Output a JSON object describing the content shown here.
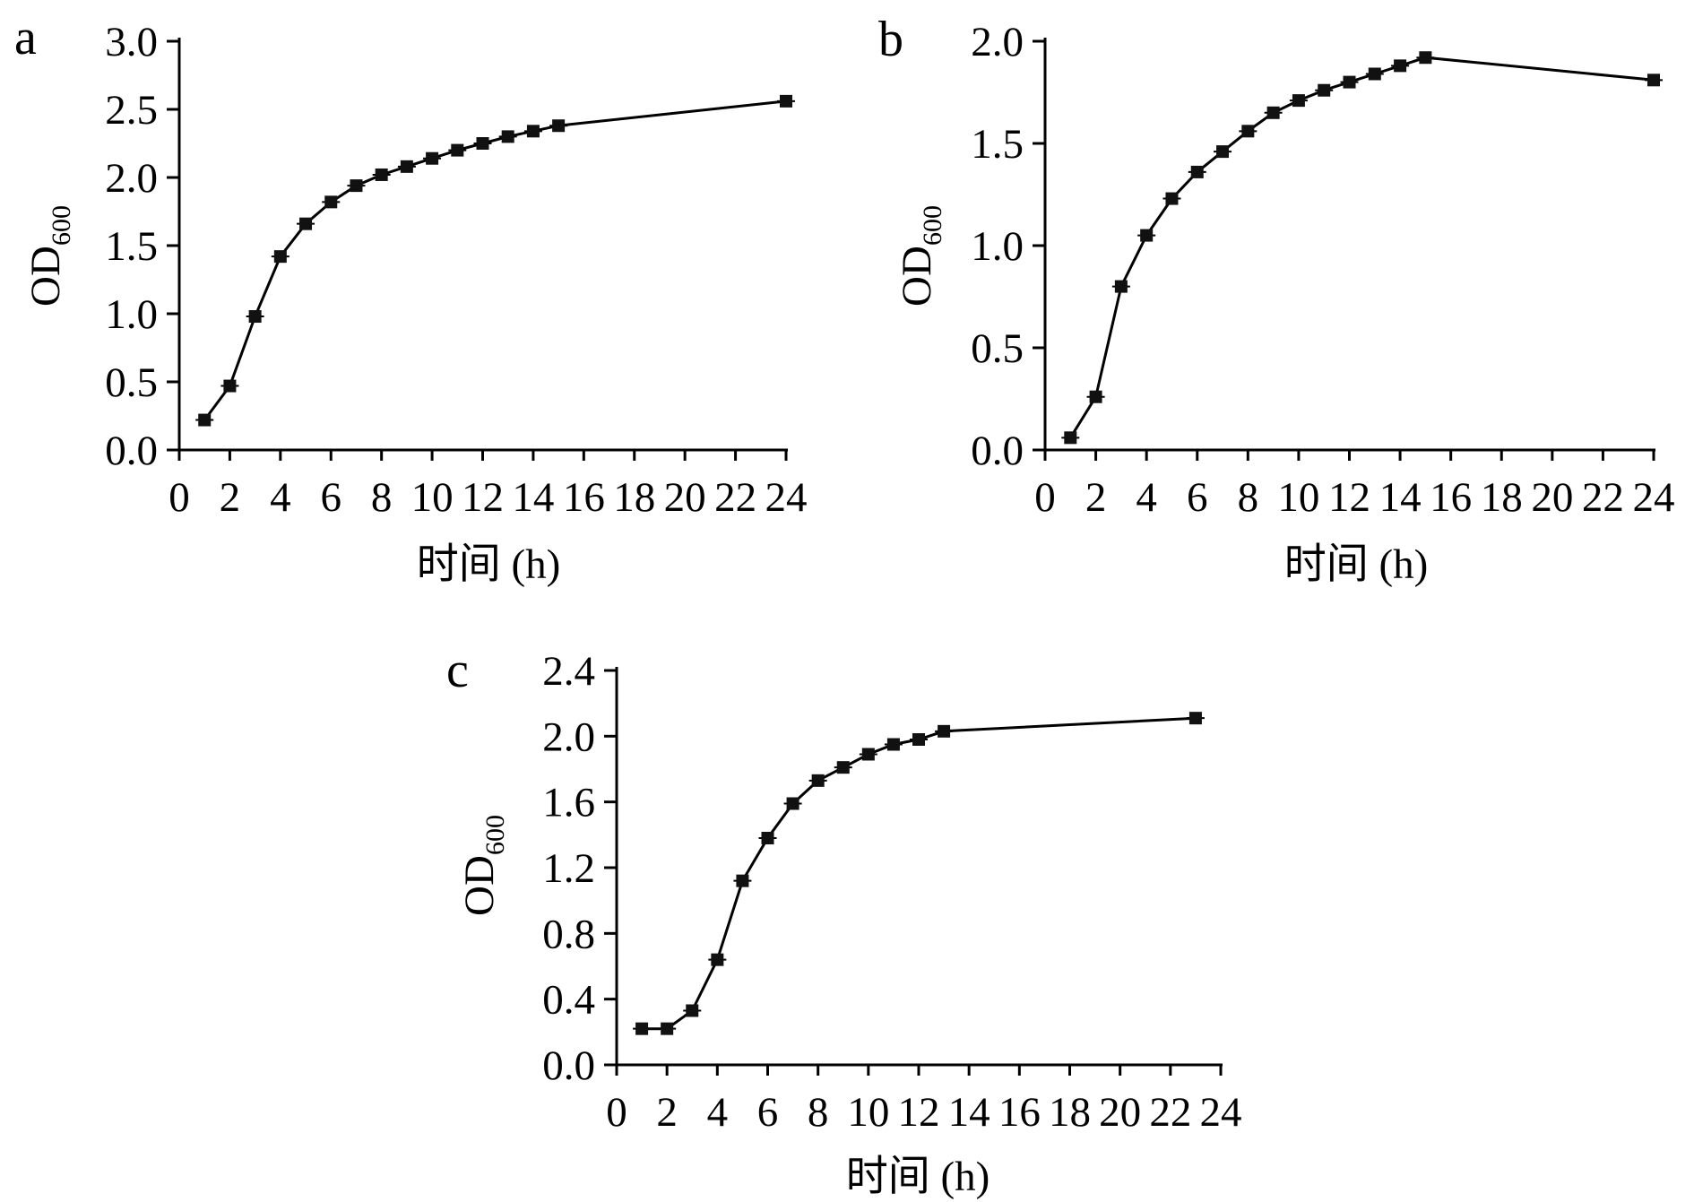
{
  "figure": {
    "panels": [
      "a",
      "b",
      "c"
    ]
  },
  "chart_data": [
    {
      "panel": "a",
      "type": "line",
      "xlabel": "时间 (h)",
      "ylabel": "OD",
      "ylabel_subscript": "600",
      "xlim": [
        0,
        24
      ],
      "ylim": [
        0,
        3.0
      ],
      "xticks": [
        "0",
        "2",
        "4",
        "6",
        "8",
        "10",
        "12",
        "14",
        "16",
        "18",
        "20",
        "22",
        "24"
      ],
      "yticks": [
        "0.0",
        "0.5",
        "1.0",
        "1.5",
        "2.0",
        "2.5",
        "3.0"
      ],
      "grid": false,
      "marker": "square",
      "series": [
        {
          "x": [
            1,
            2,
            3,
            4,
            5,
            6,
            7,
            8,
            9,
            10,
            11,
            12,
            13,
            14,
            15,
            24
          ],
          "values": [
            0.22,
            0.47,
            0.98,
            1.42,
            1.66,
            1.82,
            1.94,
            2.02,
            2.08,
            2.14,
            2.2,
            2.25,
            2.3,
            2.34,
            2.38,
            2.56
          ]
        }
      ]
    },
    {
      "panel": "b",
      "type": "line",
      "xlabel": "时间 (h)",
      "ylabel": "OD",
      "ylabel_subscript": "600",
      "xlim": [
        0,
        24
      ],
      "ylim": [
        0,
        2.0
      ],
      "xticks": [
        "0",
        "2",
        "4",
        "6",
        "8",
        "10",
        "12",
        "14",
        "16",
        "18",
        "20",
        "22",
        "24"
      ],
      "yticks": [
        "0.0",
        "0.5",
        "1.0",
        "1.5",
        "2.0"
      ],
      "grid": false,
      "marker": "square",
      "series": [
        {
          "x": [
            1,
            2,
            3,
            4,
            5,
            6,
            7,
            8,
            9,
            10,
            11,
            12,
            13,
            14,
            15,
            24
          ],
          "values": [
            0.06,
            0.26,
            0.8,
            1.05,
            1.23,
            1.36,
            1.46,
            1.56,
            1.65,
            1.71,
            1.76,
            1.8,
            1.84,
            1.88,
            1.92,
            1.81
          ]
        }
      ]
    },
    {
      "panel": "c",
      "type": "line",
      "xlabel": "时间 (h)",
      "ylabel": "OD",
      "ylabel_subscript": "600",
      "xlim": [
        0,
        24
      ],
      "ylim": [
        0,
        2.4
      ],
      "xticks": [
        "0",
        "2",
        "4",
        "6",
        "8",
        "10",
        "12",
        "14",
        "16",
        "18",
        "20",
        "22",
        "24"
      ],
      "yticks": [
        "0.0",
        "0.4",
        "0.8",
        "1.2",
        "1.6",
        "2.0",
        "2.4"
      ],
      "grid": false,
      "marker": "square",
      "series": [
        {
          "x": [
            1,
            2,
            3,
            4,
            5,
            6,
            7,
            8,
            9,
            10,
            11,
            12,
            13,
            23
          ],
          "values": [
            0.22,
            0.22,
            0.33,
            0.64,
            1.12,
            1.38,
            1.59,
            1.73,
            1.81,
            1.89,
            1.95,
            1.98,
            2.03,
            2.11
          ]
        }
      ]
    }
  ]
}
